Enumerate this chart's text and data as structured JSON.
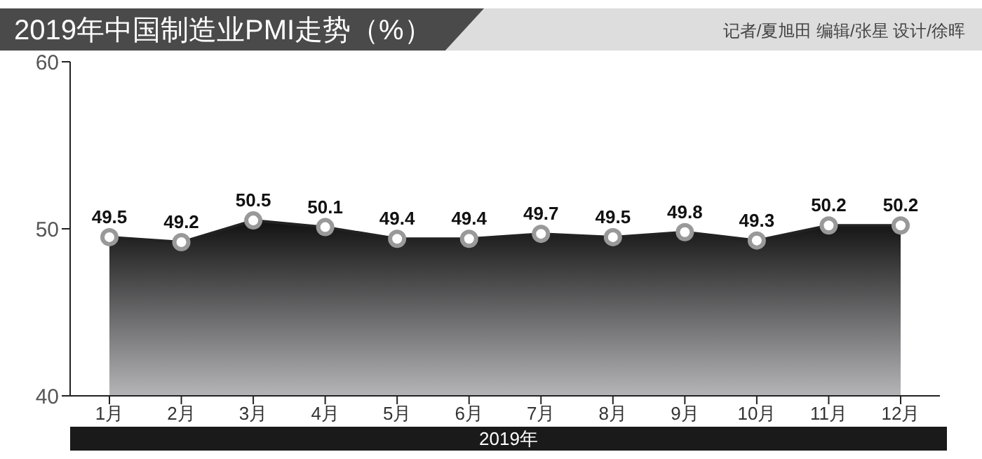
{
  "chart_data": {
    "type": "area",
    "title": "2019年中国制造业PMI走势（%）",
    "annotations": [
      "记者/夏旭田 编辑/张星 设计/徐晖"
    ],
    "xlabel": "2019年",
    "categories": [
      "1月",
      "2月",
      "3月",
      "4月",
      "5月",
      "6月",
      "7月",
      "8月",
      "9月",
      "10月",
      "11月",
      "12月"
    ],
    "values": [
      49.5,
      49.2,
      50.5,
      50.1,
      49.4,
      49.4,
      49.7,
      49.5,
      49.8,
      49.3,
      50.2,
      50.2
    ],
    "color": "#222222",
    "ylim": [
      40,
      60
    ],
    "yticks": [
      40,
      50,
      60
    ],
    "data_labels": true,
    "marker": "circle"
  }
}
